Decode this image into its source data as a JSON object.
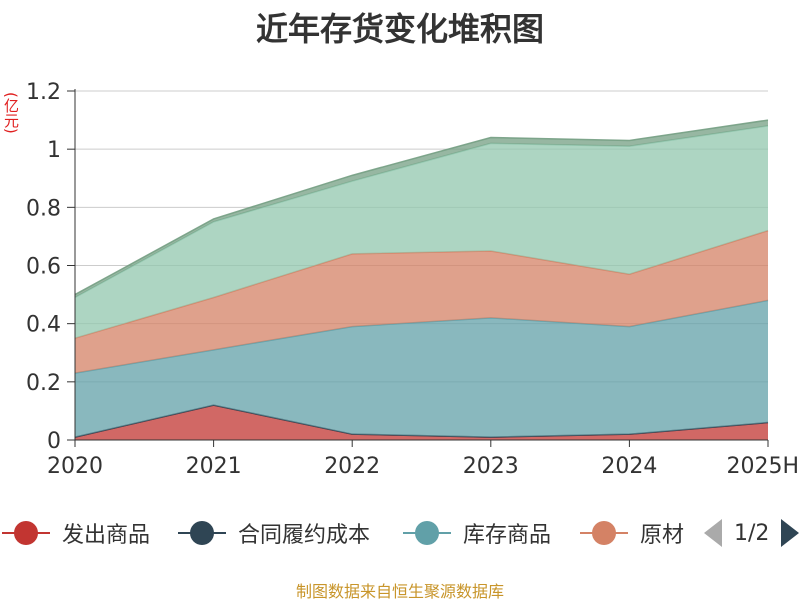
{
  "chart_data": {
    "type": "area",
    "stacked": true,
    "title": "近年存货变化堆积图",
    "ylabel": "(亿元)",
    "xlabel": "",
    "ylim": [
      0,
      1.2
    ],
    "yticks": [
      "0",
      "0.2",
      "0.4",
      "0.6",
      "0.8",
      "1",
      "1.2"
    ],
    "categories": [
      "2020",
      "2021",
      "2022",
      "2023",
      "2024",
      "2025H"
    ],
    "grid": true,
    "series": [
      {
        "name": "发出商品",
        "color": "#c23531",
        "values": [
          0.01,
          0.12,
          0.02,
          0.01,
          0.02,
          0.06
        ]
      },
      {
        "name": "合同履约成本",
        "color": "#2f4554",
        "values": [
          0,
          0,
          0,
          0,
          0,
          0
        ]
      },
      {
        "name": "库存商品",
        "color": "#61a0a8",
        "values": [
          0.22,
          0.19,
          0.37,
          0.41,
          0.37,
          0.42
        ]
      },
      {
        "name": "原材料",
        "color": "#d48265",
        "values": [
          0.12,
          0.18,
          0.25,
          0.23,
          0.18,
          0.24
        ]
      },
      {
        "name": "",
        "color": "#91c7ae",
        "values": [
          0.14,
          0.26,
          0.25,
          0.37,
          0.44,
          0.36
        ]
      },
      {
        "name": "",
        "color": "#749f83",
        "values": [
          0.01,
          0.01,
          0.02,
          0.02,
          0.02,
          0.02
        ]
      }
    ]
  },
  "legend": {
    "items": [
      "发出商品",
      "合同履约成本",
      "库存商品",
      "原材料"
    ],
    "page": "1/2"
  },
  "source": "制图数据来自恒生聚源数据库"
}
